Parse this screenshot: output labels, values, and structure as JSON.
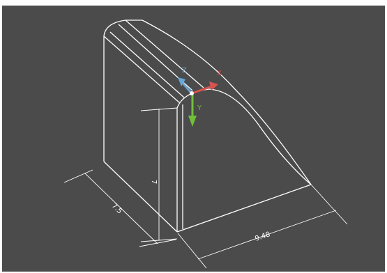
{
  "colors": {
    "canvas_background": "#4b4b4b",
    "outer_frame": "#ffffff",
    "model_lines": "#ffffff",
    "axis_x": "#d9534f",
    "axis_y": "#6fbf3a",
    "axis_z": "#69a7d9"
  },
  "viewport": {
    "gizmo": {
      "x_label": "X",
      "y_label": "Y",
      "z_label": "Z"
    },
    "dimensions": {
      "depth_label": "7.5",
      "width_label": "9.48",
      "height_label": "7"
    }
  }
}
